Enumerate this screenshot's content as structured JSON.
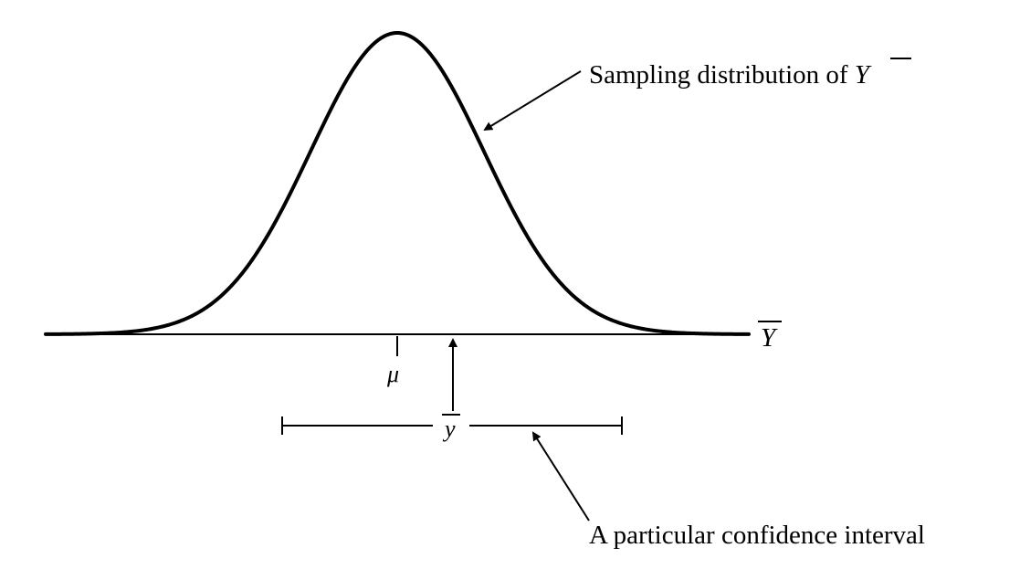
{
  "diagram": {
    "curve_label": {
      "text": "Sampling distribution of ",
      "symbol": "Y"
    },
    "axis_label": "Y",
    "mean_label": "μ",
    "sample_mean_label": "y",
    "interval_label": "A particular confidence interval",
    "colors": {
      "stroke": "#000000",
      "background": "#ffffff"
    }
  }
}
